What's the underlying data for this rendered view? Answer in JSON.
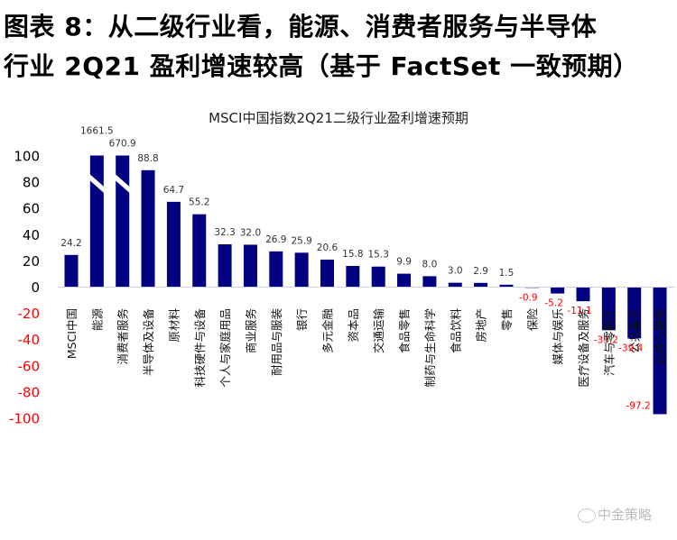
{
  "heading": {
    "line1": "图表 8：从二级行业看，能源、消费者服务与半导体",
    "line2": "行业 2Q21 盈利增速较高（基于 FactSet  一致预期）"
  },
  "watermark": {
    "icon": "wechat-icon",
    "text": "中金策略"
  },
  "colors": {
    "bar": "#000080",
    "positive_label": "#333333",
    "negative_label": "#ff0000",
    "negative_tick": "#ff0000",
    "positive_tick": "#000000",
    "axis_line": "#d0d0e0"
  },
  "chart_data": {
    "type": "bar",
    "title": "MSCI中国指数2Q21二级行业盈利增速预期",
    "xlabel": "",
    "ylabel": "",
    "ylim": [
      -100,
      100
    ],
    "yticks": [
      100,
      80,
      60,
      40,
      20,
      0,
      -20,
      -40,
      -60,
      -80,
      -100
    ],
    "grid": false,
    "axis_break_note": "Bars for 能源 (1661.5) and 消费者服务 (670.9) are truncated at 100 with an axis-break mark",
    "categories": [
      "MSCI中国",
      "能源",
      "消费者服务",
      "半导体及设备",
      "原材料",
      "科技硬件与设备",
      "个人与家庭用品",
      "商业服务",
      "耐用品与服装",
      "银行",
      "多元金融",
      "资本品",
      "交通运输",
      "食品零售",
      "制药与生命科学",
      "食品饮料",
      "房地产",
      "零售",
      "保险",
      "媒体与娱乐",
      "医疗设备及服务",
      "汽车与零部件",
      "公共事业",
      "软件与服务"
    ],
    "values": [
      24.2,
      1661.5,
      670.9,
      88.8,
      64.7,
      55.2,
      32.3,
      32.0,
      26.9,
      25.9,
      20.6,
      15.8,
      15.3,
      9.9,
      8.0,
      3.0,
      2.9,
      1.5,
      -0.9,
      -5.2,
      -11.1,
      -33.2,
      -39.4,
      -97.2
    ],
    "data_labels": [
      "24.2",
      "1661.5",
      "670.9",
      "88.8",
      "64.7",
      "55.2",
      "32.3",
      "32.0",
      "26.9",
      "25.9",
      "20.6",
      "15.8",
      "15.3",
      "9.9",
      "8.0",
      "3.0",
      "2.9",
      "1.5",
      "-0.9",
      "-5.2",
      "-11.1",
      "-33.2",
      "-39.4",
      "-97.2"
    ]
  }
}
